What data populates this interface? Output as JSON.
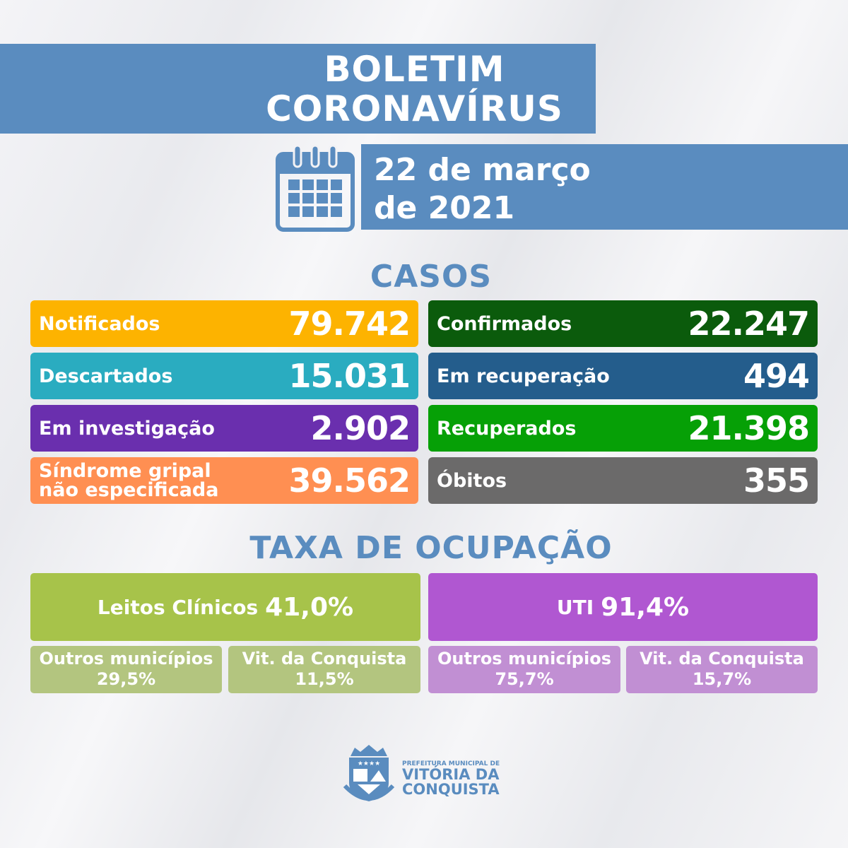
{
  "header": {
    "title_line1": "BOLETIM",
    "title_line2": "CORONAVÍRUS",
    "date_line1": "22 de março",
    "date_line2": "de 2021",
    "calendar_icon": "calendar-icon"
  },
  "casos": {
    "heading": "CASOS",
    "left": [
      {
        "label": "Notificados",
        "value": "79.742",
        "color": "#fdb300"
      },
      {
        "label": "Descartados",
        "value": "15.031",
        "color": "#2aacc0"
      },
      {
        "label": "Em investigação",
        "value": "2.902",
        "color": "#6a2fae"
      },
      {
        "label_line1": "Síndrome gripal",
        "label_line2": "não especificada",
        "value": "39.562",
        "color": "#ff8f52"
      }
    ],
    "right": [
      {
        "label": "Confirmados",
        "value": "22.247",
        "color": "#0b5b0c"
      },
      {
        "label": "Em recuperação",
        "value": "494",
        "color": "#245d8c"
      },
      {
        "label": "Recuperados",
        "value": "21.398",
        "color": "#06a006"
      },
      {
        "label": "Óbitos",
        "value": "355",
        "color": "#6b6a6a"
      }
    ]
  },
  "ocupacao": {
    "heading": "TAXA DE OCUPAÇÃO",
    "leitos": {
      "label": "Leitos Clínicos",
      "value": "41,0%",
      "color": "#a7c34a",
      "sub": [
        {
          "label": "Outros municípios",
          "value": "29,5%"
        },
        {
          "label": "Vit. da Conquista",
          "value": "11,5%"
        }
      ],
      "sub_color": "#b3c57f"
    },
    "uti": {
      "label": "UTI",
      "value": "91,4%",
      "color": "#b057d1",
      "sub": [
        {
          "label": "Outros municípios",
          "value": "75,7%"
        },
        {
          "label": "Vit. da Conquista",
          "value": "15,7%"
        }
      ],
      "sub_color": "#c18fd3"
    }
  },
  "footer": {
    "line1": "PREFEITURA MUNICIPAL DE",
    "line2": "VITÓRIA DA",
    "line3": "CONQUISTA",
    "crest_text": "VITÓRIA DA CONQUISTA"
  }
}
